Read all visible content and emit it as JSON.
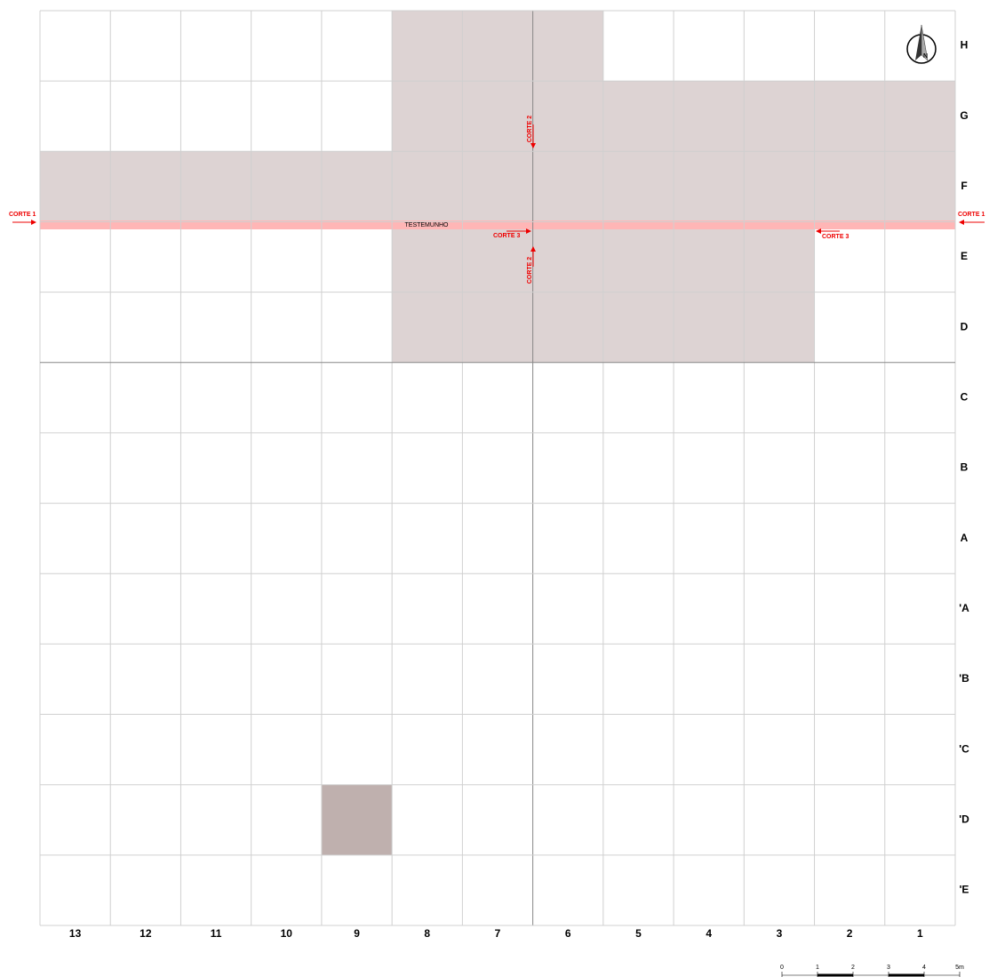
{
  "grid": {
    "columns": [
      "13",
      "12",
      "11",
      "10",
      "9",
      "8",
      "7",
      "6",
      "5",
      "4",
      "3",
      "2",
      "1"
    ],
    "rows": [
      "H",
      "G",
      "F",
      "E",
      "D",
      "C",
      "B",
      "A",
      "'A",
      "'B",
      "'C",
      "'D",
      "'E"
    ]
  },
  "annotations": {
    "testemunho": "TESTEMUNHO",
    "corte_1_left": "CORTE 1",
    "corte_1_right": "CORTE 1",
    "corte_2_top": "CORTE 2",
    "corte_2_bottom": "CORTE 2",
    "corte_3_left": "CORTE 3",
    "corte_3_right": "CORTE 3"
  },
  "scale_bar": {
    "labels": [
      "0",
      "1",
      "2",
      "3",
      "4",
      "5m"
    ]
  }
}
